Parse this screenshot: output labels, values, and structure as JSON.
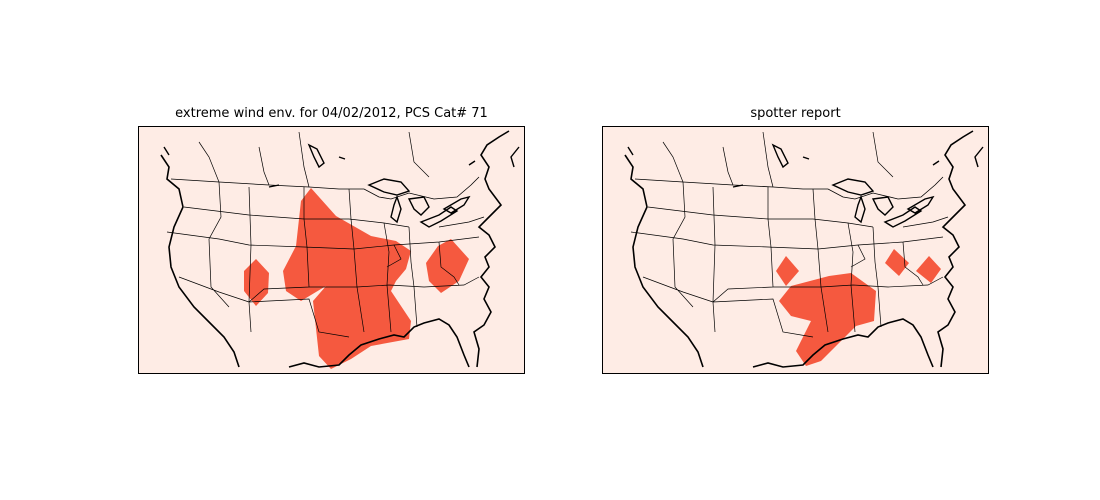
{
  "figure": {
    "panels": [
      {
        "title": "extreme wind env. for 04/02/2012, PCS Cat# 71"
      },
      {
        "title": "spotter report"
      }
    ],
    "colors": {
      "land_background": "#feece5",
      "highlight_fill": "#f5593f",
      "border_lines": "#000000"
    }
  }
}
